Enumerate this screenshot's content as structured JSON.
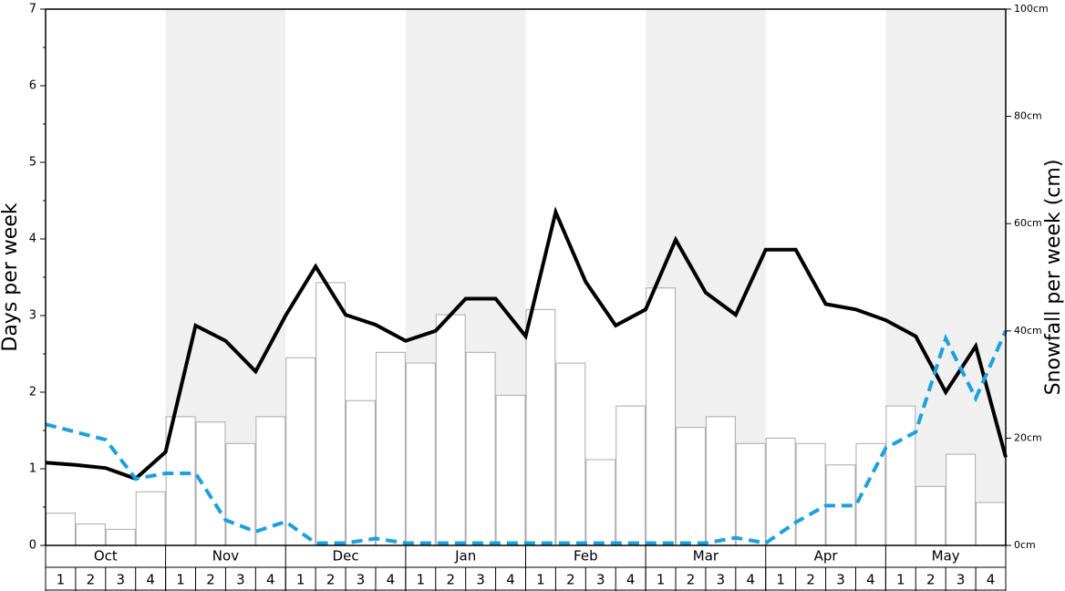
{
  "chart_data": {
    "type": "bar_line",
    "ylabel": "Days per week",
    "y2label": "Snowfall per week (cm)",
    "months": [
      "Oct",
      "Nov",
      "Dec",
      "Jan",
      "Feb",
      "Mar",
      "Apr",
      "May"
    ],
    "weeks": [
      1,
      2,
      3,
      4
    ],
    "ylim": [
      0,
      7
    ],
    "yticks": [
      0,
      1,
      2,
      3,
      4,
      5,
      6,
      7
    ],
    "y2lim": [
      0,
      100
    ],
    "y2ticks": [
      {
        "value": 0,
        "label": "0cm"
      },
      {
        "value": 20,
        "label": "20cm"
      },
      {
        "value": 40,
        "label": "40cm"
      },
      {
        "value": 60,
        "label": "60cm"
      },
      {
        "value": 80,
        "label": "80cm"
      },
      {
        "value": 100,
        "label": "100cm"
      }
    ],
    "bars": {
      "axis": "y2",
      "color": "#ffffff",
      "edgecolor": "#aaaaaa",
      "values": [
        6,
        4,
        3,
        10,
        24,
        23,
        19,
        24,
        35,
        49,
        27,
        36,
        34,
        43,
        36,
        28,
        44,
        34,
        16,
        26,
        48,
        22,
        24,
        19,
        20,
        19,
        15,
        19,
        26,
        11,
        17,
        8
      ]
    },
    "series": [
      {
        "color": "#000000",
        "style": "solid",
        "values": [
          1.08,
          1.05,
          1.01,
          0.87,
          1.22,
          2.87,
          2.67,
          2.27,
          3.0,
          3.64,
          3.01,
          2.88,
          2.67,
          2.8,
          3.22,
          3.22,
          2.73,
          4.35,
          3.44,
          2.87,
          3.08,
          3.99,
          3.3,
          3.01,
          3.86,
          3.86,
          3.15,
          3.08,
          2.94,
          2.73,
          2.0,
          2.6,
          1.15
        ]
      },
      {
        "color": "#1ca0e0",
        "style": "dashed",
        "values": [
          1.58,
          1.48,
          1.38,
          0.87,
          0.94,
          0.94,
          0.33,
          0.18,
          0.31,
          0.03,
          0.03,
          0.09,
          0.03,
          0.03,
          0.03,
          0.03,
          0.03,
          0.03,
          0.03,
          0.03,
          0.03,
          0.03,
          0.03,
          0.1,
          0.03,
          0.3,
          0.52,
          0.52,
          1.27,
          1.48,
          2.7,
          1.92,
          2.8
        ]
      }
    ]
  }
}
